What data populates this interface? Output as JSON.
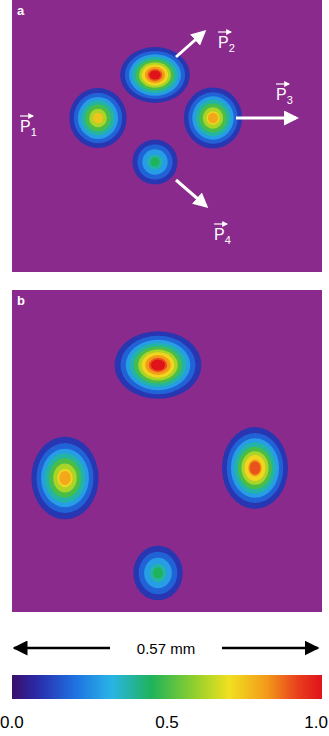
{
  "chart_data": {
    "type": "heatmap_image",
    "panels": [
      {
        "label": "a",
        "spots": [
          {
            "label": "P1",
            "peak": 0.75
          },
          {
            "label": "P2",
            "peak": 1.0
          },
          {
            "label": "P3",
            "peak": 0.8
          },
          {
            "label": "P4",
            "peak": 0.45
          }
        ]
      },
      {
        "label": "b",
        "spots": [
          {
            "peak": 0.8
          },
          {
            "peak": 1.0
          },
          {
            "peak": 0.9
          },
          {
            "peak": 0.45
          }
        ]
      }
    ],
    "scale_bar": {
      "label": "0.57 mm"
    },
    "color_bar": {
      "range": [
        0,
        1
      ],
      "ticks": [
        {
          "value": 0,
          "label": "0.0"
        },
        {
          "value": 0.5,
          "label": "0.5"
        },
        {
          "value": 1,
          "label": "1.0"
        }
      ]
    }
  }
}
